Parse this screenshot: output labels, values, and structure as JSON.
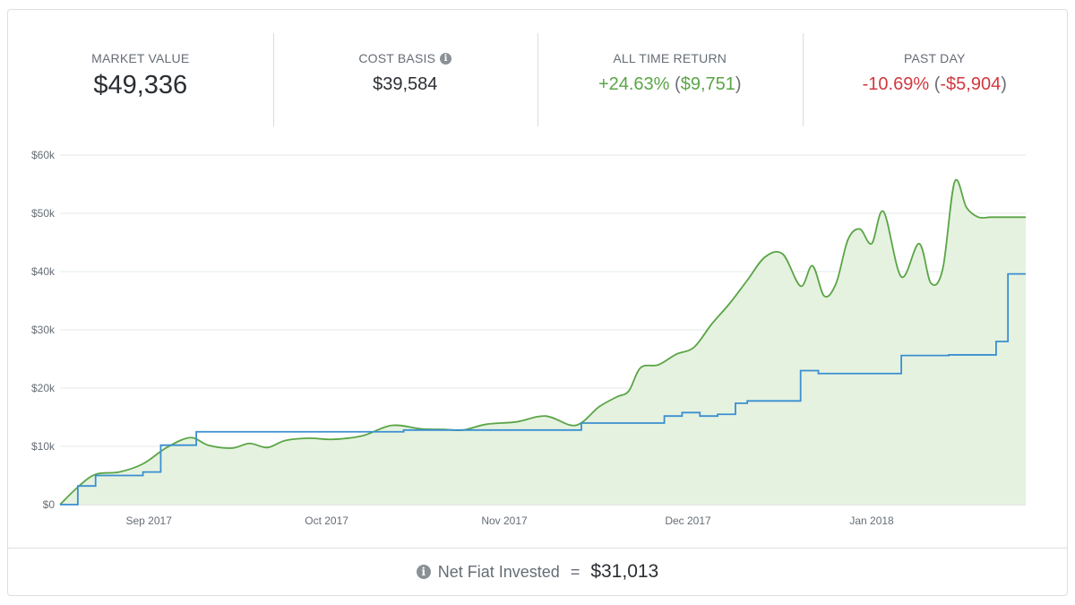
{
  "stats": [
    {
      "label": "MARKET VALUE",
      "value": "$49,336"
    },
    {
      "label": "COST BASIS",
      "value": "$39,584",
      "icon": "info-icon"
    },
    {
      "label": "ALL TIME RETURN",
      "percent": "+24.63%",
      "amount": "$9,751",
      "open": "(",
      "close": ")"
    },
    {
      "label": "PAST DAY",
      "percent": "-10.69%",
      "amount": "-$5,904",
      "open": "(",
      "close": ")"
    }
  ],
  "colors": {
    "market": "#5aa546",
    "cost": "#3a8fd0",
    "fill": "#e6f2e0",
    "positive": "#5aa546",
    "negative": "#d0393f"
  },
  "footer": {
    "label": "Net Fiat Invested",
    "eq": "=",
    "value": "$31,013",
    "icon": "info-icon"
  },
  "chart_data": {
    "type": "line",
    "xlabel": "",
    "ylabel": "",
    "ylim": [
      0,
      60000
    ],
    "yticks": [
      0,
      10000,
      20000,
      30000,
      40000,
      50000,
      60000
    ],
    "ytick_labels": [
      "$0",
      "$10k",
      "$20k",
      "$30k",
      "$40k",
      "$50k",
      "$60k"
    ],
    "xlim": [
      0,
      163
    ],
    "xticks": [
      15,
      45,
      75,
      106,
      137
    ],
    "xtick_labels": [
      "Sep 2017",
      "Oct 2017",
      "Nov 2017",
      "Dec 2017",
      "Jan 2018"
    ],
    "series": [
      {
        "name": "Market Value",
        "style": "area",
        "x": [
          0,
          3,
          6,
          10,
          14,
          18,
          22,
          25,
          29,
          32,
          35,
          38,
          42,
          46,
          51,
          56,
          61,
          65,
          68,
          72,
          77,
          82,
          87,
          91,
          94,
          96,
          98,
          101,
          104,
          107,
          110,
          113,
          116,
          119,
          122,
          125,
          127,
          129,
          131,
          133,
          135,
          137,
          139,
          142,
          145,
          147,
          149,
          151,
          153,
          155,
          157,
          159,
          161,
          163
        ],
        "y": [
          0,
          3000,
          5200,
          5600,
          7000,
          9800,
          11500,
          10200,
          9700,
          10500,
          9800,
          11000,
          11400,
          11200,
          11800,
          13600,
          13000,
          12900,
          12800,
          13800,
          14200,
          15200,
          13600,
          16800,
          18500,
          19500,
          23500,
          24000,
          25800,
          27000,
          31000,
          34500,
          38500,
          42500,
          43000,
          37500,
          41000,
          35800,
          38000,
          45500,
          47300,
          44800,
          50300,
          39100,
          44800,
          38000,
          40500,
          55400,
          51000,
          49336,
          49336,
          49336,
          49336,
          49336
        ]
      },
      {
        "name": "Cost Basis",
        "style": "step",
        "x": [
          0,
          3,
          6,
          14,
          17,
          23,
          35,
          42,
          58,
          70,
          88,
          102,
          105,
          108,
          111,
          114,
          116,
          125,
          128,
          142,
          150,
          158,
          160,
          163
        ],
        "y": [
          0,
          3200,
          5000,
          5600,
          10200,
          12500,
          12500,
          12500,
          12800,
          12800,
          14000,
          15200,
          15800,
          15200,
          15500,
          17400,
          17800,
          23000,
          22500,
          25600,
          25700,
          28000,
          39600,
          39600
        ]
      }
    ]
  }
}
